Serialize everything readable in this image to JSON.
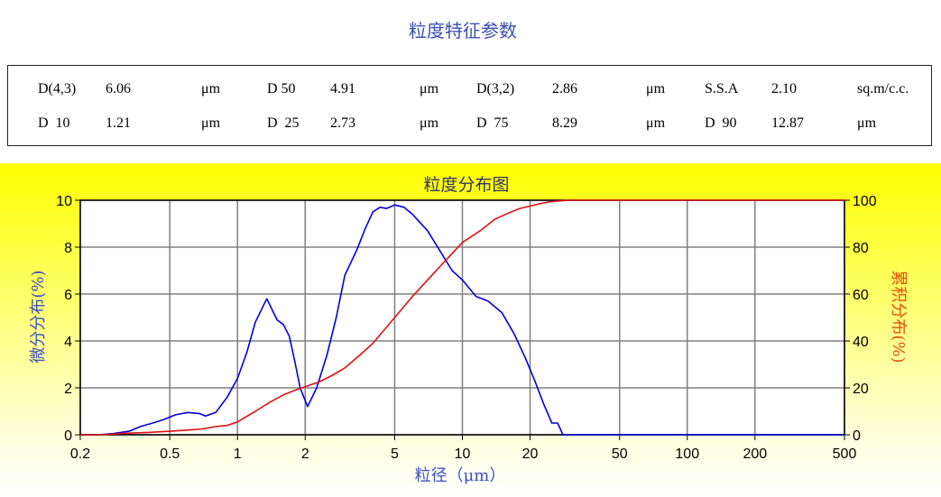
{
  "header": {
    "title": "粒度特征参数"
  },
  "params": {
    "row1": [
      {
        "label": "D(4,3)",
        "value": "6.06",
        "unit": "μm"
      },
      {
        "label": "D  50",
        "value": "4.91",
        "unit": "μm"
      },
      {
        "label": "D(3,2)",
        "value": "2.86",
        "unit": "μm"
      },
      {
        "label": "S.S.A",
        "value": "2.10",
        "unit": "sq.m/c.c."
      }
    ],
    "row2": [
      {
        "label": "D  10",
        "value": "1.21",
        "unit": "μm"
      },
      {
        "label": "D  25",
        "value": "2.73",
        "unit": "μm"
      },
      {
        "label": "D  75",
        "value": "8.29",
        "unit": "μm"
      },
      {
        "label": "D  90",
        "value": "12.87",
        "unit": "μm"
      }
    ]
  },
  "chart_data": {
    "type": "line",
    "title": "粒度分布图",
    "xlabel": "粒径（μm）",
    "ylabel_left": "微分分布(%)",
    "ylabel_right": "累积分布(%)",
    "x_scale": "log",
    "xlim": [
      0.2,
      500
    ],
    "ylim_left": [
      0,
      10
    ],
    "ylim_right": [
      0,
      100
    ],
    "x_ticks": [
      0.2,
      0.5,
      1,
      2,
      5,
      10,
      20,
      50,
      100,
      200,
      500
    ],
    "x_tick_labels": [
      "0.2",
      "0.5",
      "1",
      "2",
      "5",
      "10",
      "20",
      "50",
      "100",
      "200",
      "500"
    ],
    "y_left_ticks": [
      "0",
      "2",
      "4",
      "6",
      "8",
      "10"
    ],
    "y_right_ticks": [
      "0",
      "20",
      "40",
      "60",
      "80",
      "100"
    ],
    "grid": true,
    "colors": {
      "differential": "#0000e0",
      "cumulative": "#e01010",
      "axis_left_label": "#3b4fc0",
      "axis_right_label": "#e05010"
    },
    "series": [
      {
        "axis": "left",
        "x": [
          0.2,
          0.24,
          0.28,
          0.33,
          0.37,
          0.42,
          0.47,
          0.53,
          0.6,
          0.68,
          0.72,
          0.8,
          0.9,
          1.0,
          1.1,
          1.2,
          1.35,
          1.5,
          1.6,
          1.7,
          1.8,
          1.9,
          2.05,
          2.25,
          2.5,
          2.75,
          3.0,
          3.4,
          3.7,
          4.0,
          4.3,
          4.6,
          5.0,
          5.5,
          6.0,
          7.0,
          8.0,
          9.0,
          10.0,
          11.5,
          13.0,
          15.0,
          17.0,
          19.0,
          21.0,
          23.0,
          25.0,
          26.5,
          28.0,
          35,
          60,
          100,
          200,
          500
        ],
        "y": [
          0.0,
          0.0,
          0.05,
          0.15,
          0.35,
          0.5,
          0.65,
          0.85,
          0.95,
          0.9,
          0.8,
          0.95,
          1.6,
          2.4,
          3.5,
          4.8,
          5.8,
          4.9,
          4.7,
          4.2,
          3.1,
          2.0,
          1.2,
          2.0,
          3.4,
          5.0,
          6.8,
          7.9,
          8.8,
          9.5,
          9.7,
          9.65,
          9.8,
          9.7,
          9.4,
          8.7,
          7.8,
          7.0,
          6.6,
          5.9,
          5.7,
          5.2,
          4.3,
          3.3,
          2.3,
          1.3,
          0.5,
          0.5,
          0.0,
          0.0,
          0.0,
          0.0,
          0.0,
          0.0
        ]
      },
      {
        "axis": "right",
        "x": [
          0.2,
          0.25,
          0.3,
          0.35,
          0.4,
          0.5,
          0.6,
          0.7,
          0.8,
          0.9,
          1.0,
          1.2,
          1.4,
          1.6,
          1.8,
          2.0,
          2.3,
          2.6,
          3.0,
          3.5,
          4.0,
          5.0,
          6.0,
          7.0,
          8.0,
          10.0,
          12.0,
          14.0,
          16.0,
          18.0,
          20.0,
          22.0,
          25.0,
          30,
          50,
          100,
          200,
          500
        ],
        "y": [
          0,
          0,
          0.5,
          0.8,
          1,
          1.5,
          2,
          2.5,
          3.5,
          4,
          5.5,
          10,
          14,
          17,
          19,
          20.5,
          22.5,
          25,
          28.5,
          34,
          39,
          50,
          59,
          66,
          72,
          82,
          87,
          92,
          94.5,
          96.5,
          97.5,
          98.5,
          99.5,
          100,
          100,
          100,
          100,
          100
        ]
      }
    ]
  }
}
